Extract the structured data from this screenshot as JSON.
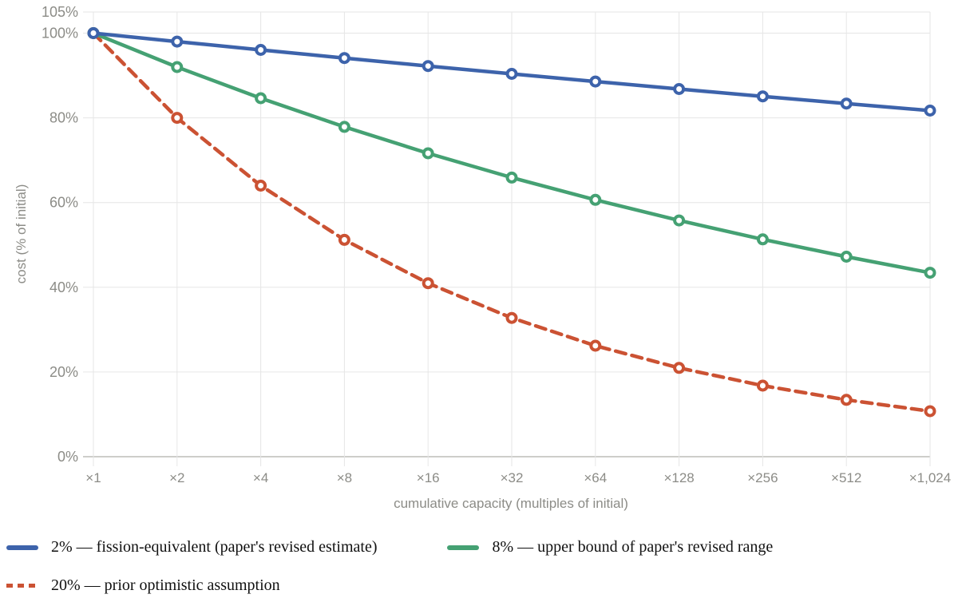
{
  "chart_data": {
    "type": "line",
    "title": "",
    "xlabel": "cumulative capacity (multiples of initial)",
    "ylabel": "cost (% of initial)",
    "x_scale": "log2",
    "categories": [
      "×1",
      "×2",
      "×4",
      "×8",
      "×16",
      "×32",
      "×64",
      "×128",
      "×256",
      "×512",
      "×1,024"
    ],
    "x_values": [
      1,
      2,
      4,
      8,
      16,
      32,
      64,
      128,
      256,
      512,
      1024
    ],
    "y_ticks": [
      0,
      20,
      40,
      60,
      80,
      100,
      105
    ],
    "y_tick_labels": [
      "0%",
      "20%",
      "40%",
      "60%",
      "80%",
      "100%",
      "105%"
    ],
    "ylim": [
      0,
      105
    ],
    "grid": true,
    "legend_position": "bottom",
    "colors": {
      "grid": "#e6e6e6",
      "axis": "#bdbdb9",
      "tick_text": "#8c8c87",
      "axis_title_text": "#8c8c87",
      "background": "#ffffff",
      "legend_text": "#111111"
    },
    "series": [
      {
        "name": "2%",
        "label": "2% — fission-equivalent (paper's revised estimate)",
        "color": "#3d63ab",
        "style": "solid",
        "marker": "circle-open",
        "values": [
          100,
          98,
          96.04,
          94.12,
          92.24,
          90.39,
          88.58,
          86.81,
          85.08,
          83.37,
          81.71
        ]
      },
      {
        "name": "8%",
        "label": "8% — upper bound of paper's revised range",
        "color": "#45a173",
        "style": "solid",
        "marker": "circle-open",
        "values": [
          100,
          92,
          84.64,
          77.87,
          71.64,
          65.91,
          60.64,
          55.78,
          51.32,
          47.22,
          43.44
        ]
      },
      {
        "name": "20%",
        "label": "20% — prior optimistic assumption",
        "color": "#cb5233",
        "style": "dashed",
        "marker": "circle-open",
        "values": [
          100,
          80,
          64,
          51.2,
          40.96,
          32.77,
          26.21,
          20.97,
          16.78,
          13.42,
          10.74
        ]
      }
    ]
  }
}
